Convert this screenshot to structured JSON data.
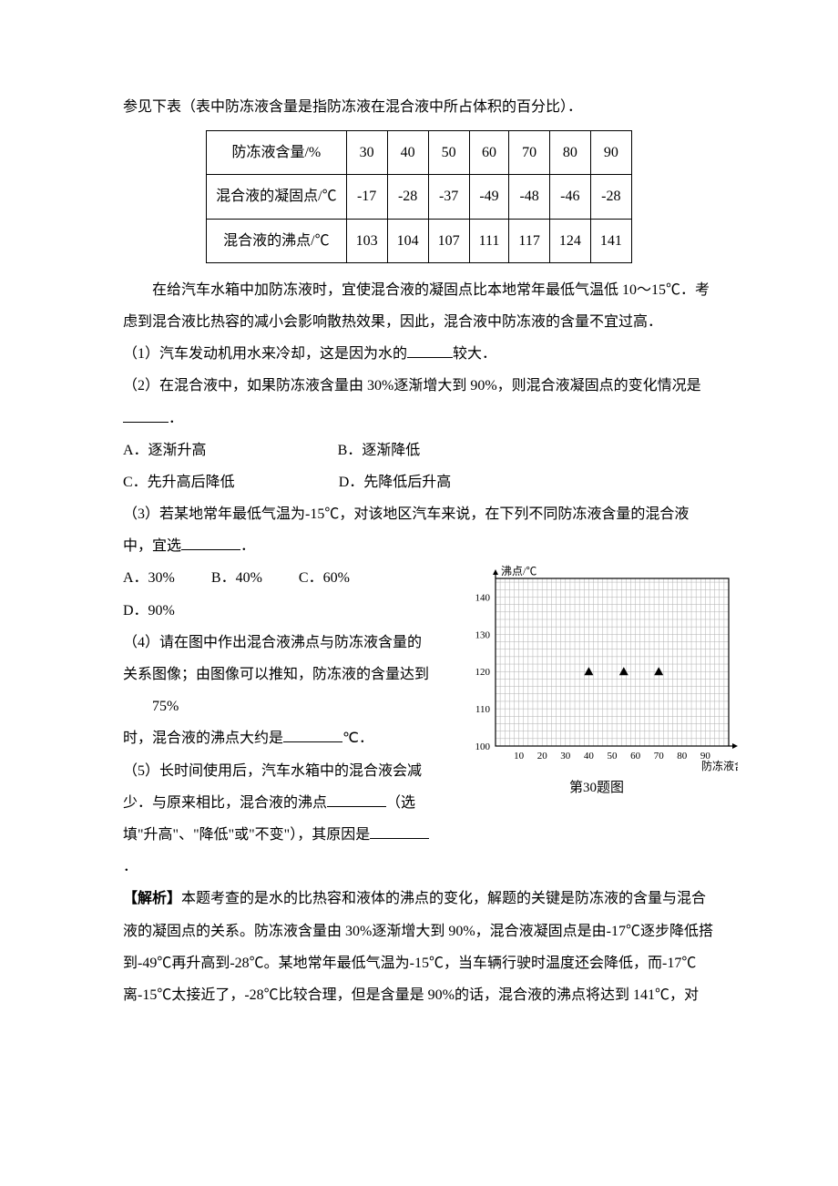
{
  "intro": "参见下表（表中防冻液含量是指防冻液在混合液中所占体积的百分比）．",
  "table": {
    "headers": [
      "防冻液含量/%",
      "30",
      "40",
      "50",
      "60",
      "70",
      "80",
      "90"
    ],
    "rows": [
      [
        "混合液的凝固点/℃",
        "-17",
        "-28",
        "-37",
        "-49",
        "-48",
        "-46",
        "-28"
      ],
      [
        "混合液的沸点/℃",
        "103",
        "104",
        "107",
        "111",
        "117",
        "124",
        "141"
      ]
    ]
  },
  "para2": "在给汽车水箱中加防冻液时，宜使混合液的凝固点比本地常年最低气温低 10～15℃．考虑到混合液比热容的减小会影响散热效果，因此，混合液中防冻液的含量不宜过高．",
  "q1_a": "（1）汽车发动机用水来冷却，这是因为水的",
  "q1_b": "较大．",
  "q2_a": "（2）在混合液中，如果防冻液含量由 30%逐渐增大到 90%，则混合液凝固点的变化情况是",
  "q2_b": "．",
  "q2_opts": {
    "a": "A．逐渐升高",
    "b": "B．逐渐降低",
    "c": "C．先升高后降低",
    "d": "D．先降低后升高"
  },
  "q3_a": "（3）若某地常年最低气温为-15℃，对该地区汽车来说，在下列不同防冻液含量的混合液中，宜选",
  "q3_b": "．",
  "q3_opts": {
    "a": "A．30%",
    "b": "B．40%",
    "c": "C．60%",
    "d": "D．90%"
  },
  "q4": "（4）请在图中作出混合液沸点与防冻液含量的关系图像；由图像可以推知，防冻液的含量达到",
  "q4_num": "75%",
  "q4_b": "时，混合液的沸点大约是",
  "q4_c": "℃．",
  "q5_a": "（5）长时间使用后，汽车水箱中的混合液会减少．与原来相比，混合液的沸点",
  "q5_b": "（选填\"升高\"、\"降低\"或\"不变\"），其原因是",
  "q5_c": "．",
  "analysis_label": "【解析】",
  "analysis": "本题考查的是水的比热容和液体的沸点的变化，解题的关键是防冻液的含量与混合液的凝固点的关系。防冻液含量由 30%逐渐增大到 90%，混合液凝固点是由-17℃逐步降低搭到-49℃再升高到-28℃。某地常年最低气温为-15℃，当车辆行驶时温度还会降低，而-17℃离-15℃太接近了，-28℃比较合理，但是含量是 90%的话，混合液的沸点将达到 141℃，对",
  "chart": {
    "caption": "第30题图",
    "ylabel": "沸点/℃",
    "xlabel": "防冻液含量/%",
    "x_ticks": [
      "10",
      "20",
      "30",
      "40",
      "50",
      "60",
      "70",
      "80",
      "90"
    ],
    "y_ticks": [
      "100",
      "110",
      "120",
      "130",
      "140"
    ],
    "x_range": [
      0,
      100
    ],
    "y_range": [
      100,
      145
    ],
    "grid_major_step_x": 10,
    "grid_minor_step_x": 2,
    "grid_major_step_y": 10,
    "grid_minor_step_y": 2,
    "markers": [
      {
        "x": 40,
        "y": 120
      },
      {
        "x": 55,
        "y": 120
      },
      {
        "x": 70,
        "y": 120
      }
    ],
    "colors": {
      "axis": "#000000",
      "grid": "#b0b0b0",
      "text": "#000000",
      "marker": "#000000",
      "bg": "#ffffff"
    },
    "fontsize_axis": 11,
    "fontsize_label": 12
  }
}
